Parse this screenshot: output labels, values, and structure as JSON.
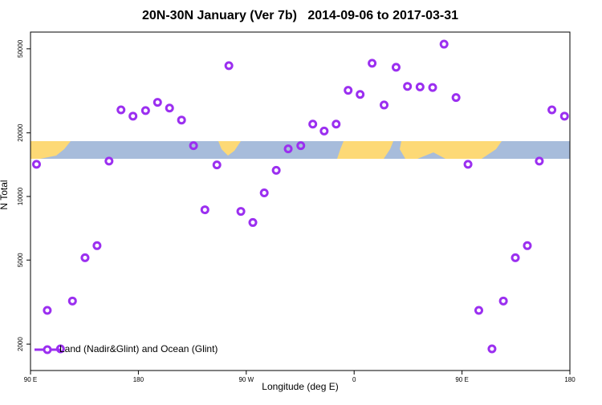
{
  "chart_data": {
    "type": "scatter",
    "title": "20N-30N January (Ver 7b)   2014-09-06 to 2017-03-31",
    "xlabel": "Longitude (deg E)",
    "ylabel": "N Total",
    "x": [
      -265,
      -256,
      -245,
      -235,
      -224.5,
      -214.5,
      -204.5,
      -194.5,
      -184.5,
      -174,
      -164,
      -154,
      -144,
      -134,
      -124.5,
      -114.5,
      -104.5,
      -94.5,
      -84.5,
      -75,
      -65,
      -55,
      -44.5,
      -34.5,
      -25,
      -15,
      -5,
      5,
      15,
      25,
      35,
      44.5,
      55,
      65.5,
      75,
      85,
      95,
      104,
      115,
      124.5,
      134.5,
      144.5,
      154.5,
      165,
      175.5
    ],
    "series": [
      {
        "name": "Land (Nadir&Glint) and Ocean (Glint)",
        "color": "#9b2ff0",
        "values": [
          14200,
          2890,
          1900,
          3200,
          5130,
          5850,
          14700,
          25700,
          24000,
          25500,
          27900,
          26200,
          23000,
          17400,
          8650,
          14100,
          41600,
          8500,
          7530,
          10400,
          13300,
          16800,
          17400,
          22000,
          20400,
          22000,
          31800,
          30400,
          42700,
          27100,
          40900,
          33200,
          33000,
          32800,
          52600,
          29400,
          14200,
          2890,
          1900,
          3200,
          5130,
          5850,
          14700,
          25700,
          24000
        ]
      }
    ],
    "xlim": [
      -270,
      180
    ],
    "xticks": [
      {
        "value": -270,
        "label": "90 E"
      },
      {
        "value": -180,
        "label": "180"
      },
      {
        "value": -90,
        "label": "90 W"
      },
      0,
      {
        "value": 90,
        "label": "90 E"
      },
      180
    ],
    "ylim": [
      1500,
      60000
    ],
    "log_y": true,
    "yticks": [
      2000,
      5000,
      10000,
      20000,
      50000
    ],
    "legend": "lower left"
  }
}
